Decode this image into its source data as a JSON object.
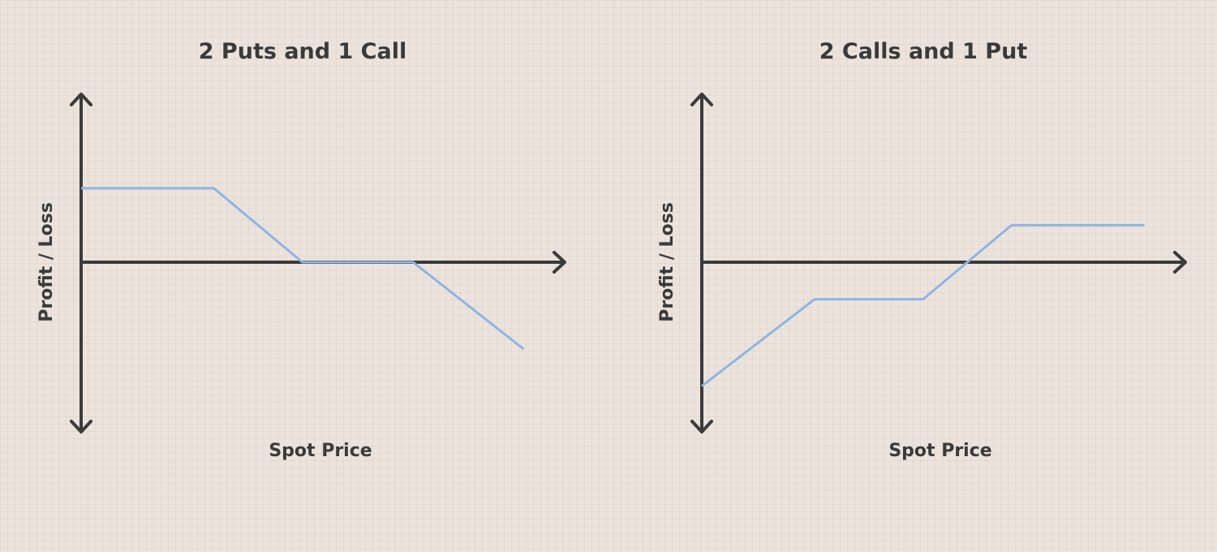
{
  "chart_data": [
    {
      "type": "line",
      "title": "2 Puts and 1 Call",
      "xlabel": "Spot Price",
      "ylabel": "Profit / Loss",
      "series": [
        {
          "x": [
            0,
            3,
            5,
            7.5,
            10
          ],
          "y": [
            2,
            2,
            0,
            0,
            -2.35
          ]
        }
      ],
      "xlim": [
        0,
        11
      ],
      "ylim": [
        -4.5,
        4.5
      ],
      "color": "#8fb4e3"
    },
    {
      "type": "line",
      "title": "2 Calls and 1 Put",
      "xlabel": "Spot Price",
      "ylabel": "Profit / Loss",
      "series": [
        {
          "x": [
            0,
            2.55,
            5,
            7,
            10
          ],
          "y": [
            -3.35,
            -1,
            -1,
            1,
            1
          ]
        }
      ],
      "xlim": [
        0,
        11
      ],
      "ylim": [
        -4.5,
        4.5
      ],
      "color": "#8fb4e3"
    }
  ]
}
